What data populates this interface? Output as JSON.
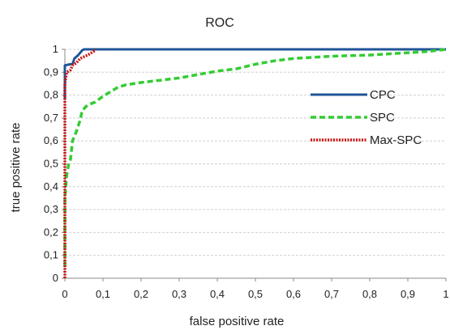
{
  "chart_data": {
    "type": "line",
    "title": "ROC",
    "xlabel": "false positive rate",
    "ylabel": "true positive rate",
    "xlim": [
      0,
      1
    ],
    "ylim": [
      0,
      1
    ],
    "x_ticks": [
      "0",
      "0,1",
      "0,2",
      "0,3",
      "0,4",
      "0,5",
      "0,6",
      "0,7",
      "0,8",
      "0,9",
      "1"
    ],
    "y_ticks": [
      "0",
      "0,1",
      "0,2",
      "0,3",
      "0,4",
      "0,5",
      "0,6",
      "0,7",
      "0,8",
      "0,9",
      "1"
    ],
    "grid": "horizontal",
    "legend_position": "right",
    "series": [
      {
        "name": "CPC",
        "color": "#1f5597",
        "style": "solid",
        "points": [
          [
            0,
            0.78
          ],
          [
            0,
            0.93
          ],
          [
            0.015,
            0.935
          ],
          [
            0.02,
            0.935
          ],
          [
            0.025,
            0.96
          ],
          [
            0.035,
            0.975
          ],
          [
            0.045,
            0.995
          ],
          [
            0.05,
            1.0
          ],
          [
            1.0,
            1.0
          ]
        ]
      },
      {
        "name": "SPC",
        "color": "#33cc33",
        "style": "dashed",
        "points": [
          [
            0,
            0.05
          ],
          [
            0,
            0.35
          ],
          [
            0.005,
            0.45
          ],
          [
            0.01,
            0.5
          ],
          [
            0.015,
            0.52
          ],
          [
            0.02,
            0.6
          ],
          [
            0.03,
            0.64
          ],
          [
            0.04,
            0.69
          ],
          [
            0.045,
            0.73
          ],
          [
            0.055,
            0.75
          ],
          [
            0.065,
            0.76
          ],
          [
            0.08,
            0.77
          ],
          [
            0.1,
            0.795
          ],
          [
            0.12,
            0.815
          ],
          [
            0.14,
            0.835
          ],
          [
            0.16,
            0.845
          ],
          [
            0.2,
            0.855
          ],
          [
            0.25,
            0.865
          ],
          [
            0.3,
            0.875
          ],
          [
            0.35,
            0.89
          ],
          [
            0.4,
            0.905
          ],
          [
            0.45,
            0.915
          ],
          [
            0.5,
            0.935
          ],
          [
            0.55,
            0.95
          ],
          [
            0.6,
            0.96
          ],
          [
            0.7,
            0.97
          ],
          [
            0.8,
            0.975
          ],
          [
            0.9,
            0.985
          ],
          [
            0.95,
            0.99
          ],
          [
            1.0,
            1.0
          ]
        ]
      },
      {
        "name": "Max-SPC",
        "color": "#cc1111",
        "style": "dotted",
        "points": [
          [
            0,
            0.0
          ],
          [
            0,
            0.85
          ],
          [
            0.005,
            0.9
          ],
          [
            0.015,
            0.91
          ],
          [
            0.02,
            0.93
          ],
          [
            0.03,
            0.94
          ],
          [
            0.04,
            0.96
          ],
          [
            0.06,
            0.975
          ],
          [
            0.075,
            0.99
          ],
          [
            0.08,
            1.0
          ]
        ]
      }
    ]
  }
}
